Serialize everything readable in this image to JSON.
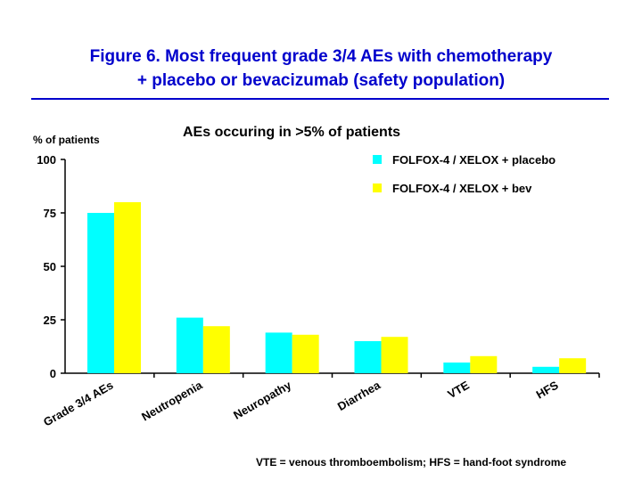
{
  "slide": {
    "title_line1": "Figure 6. Most frequent grade 3/4 AEs with chemotherapy",
    "title_line2": "+ placebo or bevacizumab (safety population)",
    "title_color": "#0000cc",
    "footnote": "VTE = venous thromboembolism; HFS = hand-foot syndrome"
  },
  "chart_data": {
    "type": "bar",
    "title": "AEs occuring in >5% of patients",
    "ylabel": "% of patients",
    "xlabel": "",
    "ylim": [
      0,
      100
    ],
    "yticks": [
      0,
      25,
      50,
      75,
      100
    ],
    "categories": [
      "Grade 3/4 AEs",
      "Neutropenia",
      "Neuropathy",
      "Diarrhea",
      "VTE",
      "HFS"
    ],
    "series": [
      {
        "name": "FOLFOX-4 / XELOX + placebo",
        "color": "#00ffff",
        "values": [
          75,
          26,
          19,
          15,
          5,
          3
        ]
      },
      {
        "name": "FOLFOX-4 / XELOX + bev",
        "color": "#ffff00",
        "values": [
          80,
          22,
          18,
          17,
          8,
          7
        ]
      }
    ],
    "legend_position": "top-right",
    "grid": false
  }
}
